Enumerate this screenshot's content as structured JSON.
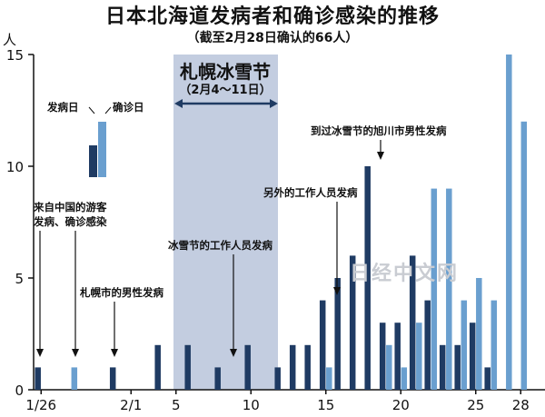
{
  "title": "日本北海道发病者和确诊感染的推移",
  "subtitle": "（截至2月28日确认的66人）",
  "watermark": "日经中文网",
  "chart_data": {
    "type": "bar",
    "ylabel": "人",
    "ylim": [
      0,
      15
    ],
    "yticks": [
      0,
      5,
      10,
      15
    ],
    "xlim": [
      0.5,
      34.5
    ],
    "x_ticks": [
      {
        "day": 1,
        "label": "1/26"
      },
      {
        "day": 7,
        "label": "2/1"
      },
      {
        "day": 10,
        "label": "5"
      },
      {
        "day": 15,
        "label": "10"
      },
      {
        "day": 20,
        "label": "15"
      },
      {
        "day": 25,
        "label": "20"
      },
      {
        "day": 30,
        "label": "25"
      },
      {
        "day": 33,
        "label": "28"
      }
    ],
    "series": [
      {
        "name": "发病日",
        "color": "#1f3b63",
        "points": [
          [
            1,
            1
          ],
          [
            6,
            1
          ],
          [
            9,
            2
          ],
          [
            11,
            2
          ],
          [
            13,
            1
          ],
          [
            15,
            2
          ],
          [
            17,
            1
          ],
          [
            18,
            2
          ],
          [
            19,
            2
          ],
          [
            20,
            4
          ],
          [
            21,
            5
          ],
          [
            22,
            6
          ],
          [
            23,
            10
          ],
          [
            24,
            3
          ],
          [
            25,
            3
          ],
          [
            26,
            6
          ],
          [
            27,
            4
          ],
          [
            28,
            2
          ],
          [
            29,
            2
          ],
          [
            30,
            3
          ],
          [
            31,
            1
          ]
        ]
      },
      {
        "name": "确诊日",
        "color": "#6a9fcf",
        "points": [
          [
            3,
            1
          ],
          [
            20,
            1
          ],
          [
            24,
            2
          ],
          [
            25,
            1
          ],
          [
            26,
            3
          ],
          [
            27,
            9
          ],
          [
            28,
            9
          ],
          [
            29,
            4
          ],
          [
            30,
            5
          ],
          [
            31,
            4
          ],
          [
            32,
            15
          ],
          [
            33,
            12
          ]
        ]
      }
    ],
    "legend": {
      "position": "top-left",
      "items": [
        "发病日",
        "确诊日"
      ]
    },
    "highlight": {
      "label": "札幌冰雪节",
      "range_label": "（2月4～11日）",
      "from": "2/4",
      "to": "2/11"
    },
    "annotations": [
      {
        "text": "来自中国的游客",
        "text2": "发病、确诊感染"
      },
      {
        "text": "札幌市的男性发病"
      },
      {
        "text": "冰雪节的工作人员发病"
      },
      {
        "text": "另外的工作人员发病"
      },
      {
        "text": "到过冰雪节的旭川市男性发病"
      }
    ]
  }
}
